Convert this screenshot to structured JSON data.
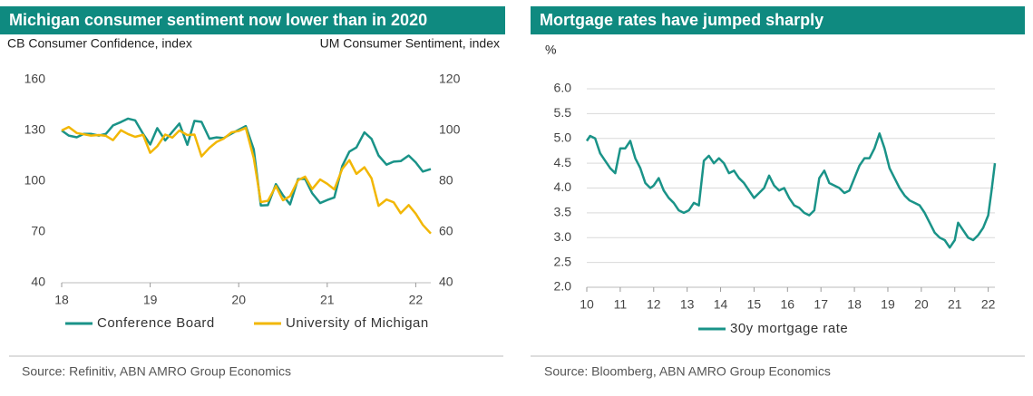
{
  "chart_data": [
    {
      "type": "line",
      "title": "Michigan consumer sentiment now lower than in 2020",
      "ylabel": "CB Consumer Confidence, index",
      "y2label": "UM Consumer Sentiment, index",
      "x": [
        18.0,
        18.08,
        18.17,
        18.25,
        18.33,
        18.42,
        18.5,
        18.58,
        18.67,
        18.75,
        18.83,
        18.92,
        19.0,
        19.08,
        19.17,
        19.25,
        19.33,
        19.42,
        19.5,
        19.58,
        19.67,
        19.75,
        19.83,
        19.92,
        20.0,
        20.08,
        20.17,
        20.25,
        20.33,
        20.42,
        20.5,
        20.58,
        20.67,
        20.75,
        20.83,
        20.92,
        21.0,
        21.08,
        21.17,
        21.25,
        21.33,
        21.42,
        21.5,
        21.58,
        21.67,
        21.75,
        21.83,
        21.92,
        22.0,
        22.08,
        22.17
      ],
      "xlim": [
        18,
        22.17
      ],
      "xticks": [
        18,
        19,
        20,
        21,
        22
      ],
      "ylim": [
        40,
        160
      ],
      "yticks": [
        40,
        70,
        100,
        130,
        160
      ],
      "y2lim": [
        40,
        120
      ],
      "y2ticks": [
        40,
        60,
        80,
        100,
        120
      ],
      "grid": false,
      "series": [
        {
          "name": "Conference Board",
          "color": "#1a9388",
          "values": [
            130,
            127,
            126,
            128,
            128,
            127,
            128,
            133,
            135,
            137,
            136,
            128,
            121.7,
            131.4,
            124.1,
            129.2,
            134.1,
            121.5,
            135.7,
            135.1,
            125.1,
            125.9,
            125.5,
            128.2,
            130.4,
            132.6,
            118.8,
            85.7,
            85.9,
            98.3,
            91.7,
            86.3,
            101.3,
            101.4,
            92.9,
            87.1,
            88.9,
            90.4,
            109,
            117.5,
            120,
            128.9,
            125.1,
            115.2,
            109.8,
            111.6,
            111.9,
            115.2,
            111.1,
            105.7,
            107.2
          ]
        },
        {
          "name": "University of Michigan",
          "color": "#f2b705",
          "axis": "y2",
          "values": [
            100,
            101.4,
            99,
            98.5,
            98,
            98.2,
            97.9,
            96.2,
            100.1,
            98.6,
            97.5,
            98.3,
            91.2,
            93.8,
            98.4,
            97.2,
            100,
            98.2,
            98.4,
            89.8,
            93.2,
            95.5,
            96.8,
            99.3,
            99.8,
            101,
            89.1,
            71.8,
            72.3,
            78.1,
            72.5,
            74.1,
            80.4,
            81.8,
            76.9,
            80.7,
            79,
            76.8,
            84.9,
            88.3,
            82.9,
            85.5,
            81.2,
            70.3,
            72.8,
            71.7,
            67.4,
            70.6,
            67.2,
            62.8,
            59.4
          ]
        }
      ],
      "source": "Source: Refinitiv, ABN AMRO Group Economics"
    },
    {
      "type": "line",
      "title": "Mortgage rates have jumped sharply",
      "ylabel": "%",
      "x": [
        10.0,
        10.1,
        10.25,
        10.4,
        10.55,
        10.7,
        10.85,
        11.0,
        11.15,
        11.3,
        11.45,
        11.6,
        11.75,
        11.9,
        12.0,
        12.15,
        12.3,
        12.45,
        12.6,
        12.75,
        12.9,
        13.05,
        13.2,
        13.35,
        13.5,
        13.65,
        13.8,
        13.95,
        14.1,
        14.25,
        14.4,
        14.55,
        14.7,
        14.85,
        15.0,
        15.15,
        15.3,
        15.45,
        15.6,
        15.75,
        15.9,
        16.05,
        16.2,
        16.35,
        16.5,
        16.65,
        16.8,
        16.95,
        17.1,
        17.25,
        17.4,
        17.55,
        17.7,
        17.85,
        18.0,
        18.15,
        18.3,
        18.45,
        18.6,
        18.75,
        18.9,
        19.05,
        19.2,
        19.35,
        19.5,
        19.65,
        19.8,
        19.95,
        20.1,
        20.25,
        20.4,
        20.55,
        20.7,
        20.85,
        21.0,
        21.1,
        21.25,
        21.4,
        21.55,
        21.7,
        21.85,
        22.0,
        22.1,
        22.2
      ],
      "xlim": [
        10,
        22.2
      ],
      "xticks": [
        10,
        11,
        12,
        13,
        14,
        15,
        16,
        17,
        18,
        19,
        20,
        21,
        22
      ],
      "ylim": [
        2,
        6
      ],
      "yticks": [
        {
          "value": 2,
          "label": "2.0"
        },
        2.5,
        {
          "value": 3,
          "label": "3.0"
        },
        3.5,
        {
          "value": 4,
          "label": "4.0"
        },
        4.5,
        {
          "value": 5,
          "label": "5.0"
        },
        5.5,
        {
          "value": 6,
          "label": "6.0"
        }
      ],
      "grid": true,
      "series": [
        {
          "name": "30y mortgage rate",
          "color": "#1a9388",
          "values": [
            4.95,
            5.05,
            5.0,
            4.7,
            4.55,
            4.4,
            4.3,
            4.8,
            4.8,
            4.95,
            4.6,
            4.4,
            4.1,
            4.0,
            4.05,
            4.2,
            3.95,
            3.8,
            3.7,
            3.55,
            3.5,
            3.55,
            3.7,
            3.65,
            4.55,
            4.65,
            4.5,
            4.6,
            4.5,
            4.3,
            4.35,
            4.2,
            4.1,
            3.95,
            3.8,
            3.9,
            4.0,
            4.25,
            4.05,
            3.95,
            4.0,
            3.8,
            3.65,
            3.6,
            3.5,
            3.45,
            3.55,
            4.2,
            4.35,
            4.1,
            4.05,
            4.0,
            3.9,
            3.95,
            4.2,
            4.45,
            4.6,
            4.6,
            4.8,
            5.1,
            4.8,
            4.4,
            4.2,
            4.0,
            3.85,
            3.75,
            3.7,
            3.65,
            3.5,
            3.3,
            3.1,
            3.0,
            2.95,
            2.8,
            2.95,
            3.3,
            3.15,
            3.0,
            2.95,
            3.05,
            3.2,
            3.45,
            3.95,
            4.5
          ]
        }
      ],
      "source": "Source: Bloomberg, ABN AMRO Group Economics"
    }
  ]
}
